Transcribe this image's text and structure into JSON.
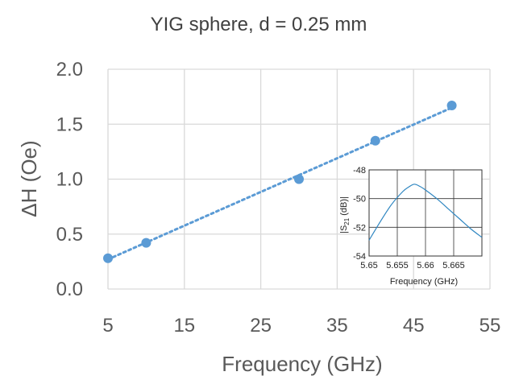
{
  "chart_data": [
    {
      "type": "scatter",
      "title": "YIG sphere, d = 0.25 mm",
      "xlabel": "Frequency (GHz)",
      "ylabel": "ΔH (Oe)",
      "xlim": [
        5,
        55
      ],
      "ylim": [
        0.0,
        2.0
      ],
      "x_ticks": [
        "5",
        "15",
        "25",
        "35",
        "45",
        "55"
      ],
      "y_ticks": [
        "0.0",
        "0.5",
        "1.0",
        "1.5",
        "2.0"
      ],
      "grid": true,
      "colors": {
        "series": "#5b9bd5",
        "grid": "#d9d9d9"
      },
      "series": [
        {
          "points": [
            {
              "x": 5,
              "y": 0.28
            },
            {
              "x": 10,
              "y": 0.42
            },
            {
              "x": 30,
              "y": 1.0
            },
            {
              "x": 40,
              "y": 1.35
            },
            {
              "x": 50,
              "y": 1.67
            }
          ],
          "trendline": {
            "type": "linear",
            "style": "dotted",
            "from": [
              5,
              0.27
            ],
            "to": [
              50,
              1.65
            ]
          }
        }
      ]
    },
    {
      "type": "line",
      "inset": true,
      "xlabel": "Frequency (GHz)",
      "ylabel": "|S21 (dB)|",
      "ylabel_main": "|S",
      "ylabel_sub": "21",
      "ylabel_tail": " (dB)|",
      "xlim": [
        5.65,
        5.67
      ],
      "ylim": [
        -54,
        -48
      ],
      "x_ticks": [
        "5.65",
        "5.655",
        "5.66",
        "5.665"
      ],
      "x_tick_values": [
        5.65,
        5.655,
        5.66,
        5.665
      ],
      "y_ticks": [
        "-48",
        "-50",
        "-52",
        "-54"
      ],
      "y_tick_values": [
        -48,
        -50,
        -52,
        -54
      ],
      "grid": true,
      "colors": {
        "series": "#2e86c1",
        "grid": "#333333"
      },
      "series": [
        {
          "x": [
            5.65,
            5.652,
            5.654,
            5.656,
            5.657,
            5.658,
            5.659,
            5.66,
            5.662,
            5.664,
            5.666,
            5.668,
            5.67
          ],
          "values": [
            -52.9,
            -51.6,
            -50.4,
            -49.5,
            -49.2,
            -49.0,
            -49.15,
            -49.4,
            -50.0,
            -50.7,
            -51.4,
            -52.1,
            -52.7
          ]
        }
      ]
    }
  ]
}
